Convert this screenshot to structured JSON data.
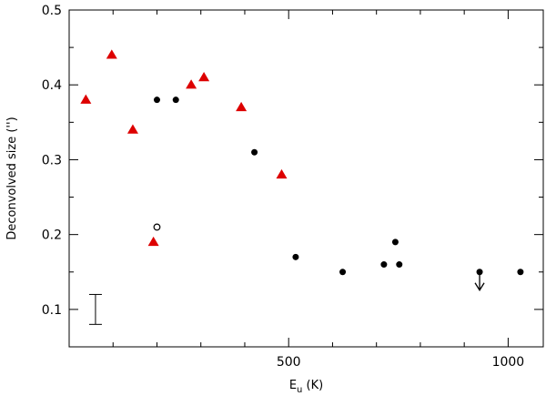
{
  "chart_data": {
    "type": "scatter",
    "title": "",
    "xlabel": {
      "main": "E",
      "sub": "u",
      "suffix": " (K)"
    },
    "ylabel": "Deconvolved size ('')",
    "xlim": [
      0,
      1080
    ],
    "ylim": [
      0.05,
      0.5
    ],
    "x_tick_labels": [
      {
        "value": 500,
        "label": "500"
      },
      {
        "value": 1000,
        "label": "1000"
      }
    ],
    "y_tick_labels": [
      {
        "value": 0.1,
        "label": "0.1"
      },
      {
        "value": 0.2,
        "label": "0.2"
      },
      {
        "value": 0.3,
        "label": "0.3"
      },
      {
        "value": 0.4,
        "label": "0.4"
      },
      {
        "value": 0.5,
        "label": "0.5"
      }
    ],
    "x_major_ticks": [
      500,
      1000
    ],
    "x_minor_ticks": [
      100,
      200,
      300,
      400,
      600,
      700,
      800,
      900
    ],
    "y_major_ticks": [
      0.1,
      0.2,
      0.3,
      0.4,
      0.5
    ],
    "y_minor_ticks": [
      0.05,
      0.15,
      0.25,
      0.35,
      0.45
    ],
    "grid": false,
    "legend": "none",
    "colors": {
      "triangles": "#dd0000",
      "dots": "#000000",
      "axes": "#000000"
    },
    "series": [
      {
        "marker": "triangle",
        "points": [
          {
            "x": 38,
            "y": 0.38
          },
          {
            "x": 97,
            "y": 0.44
          },
          {
            "x": 145,
            "y": 0.34
          },
          {
            "x": 192,
            "y": 0.19
          },
          {
            "x": 278,
            "y": 0.4
          },
          {
            "x": 307,
            "y": 0.41
          },
          {
            "x": 392,
            "y": 0.37
          },
          {
            "x": 484,
            "y": 0.28
          }
        ]
      },
      {
        "marker": "filled-circle",
        "points": [
          {
            "x": 200,
            "y": 0.38
          },
          {
            "x": 243,
            "y": 0.38
          },
          {
            "x": 422,
            "y": 0.31
          },
          {
            "x": 516,
            "y": 0.17
          },
          {
            "x": 623,
            "y": 0.15
          },
          {
            "x": 717,
            "y": 0.16
          },
          {
            "x": 743,
            "y": 0.19
          },
          {
            "x": 752,
            "y": 0.16
          },
          {
            "x": 935,
            "y": 0.15,
            "upper_limit": true
          },
          {
            "x": 1028,
            "y": 0.15
          }
        ]
      },
      {
        "marker": "open-circle",
        "points": [
          {
            "x": 200,
            "y": 0.21
          }
        ]
      }
    ],
    "error_bar_example": {
      "x": 60,
      "y_low": 0.08,
      "y_high": 0.12
    }
  }
}
